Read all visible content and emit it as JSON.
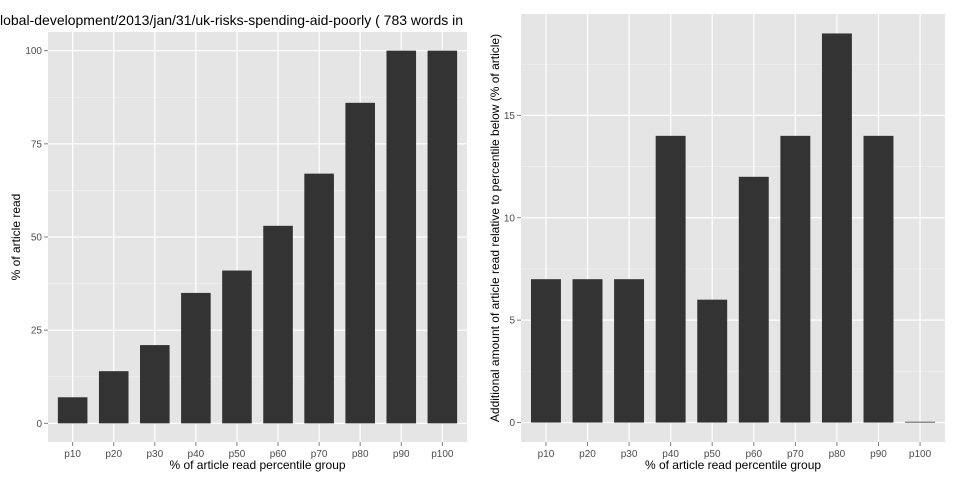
{
  "chart_data": [
    {
      "type": "bar",
      "title": "lobal-development/2013/jan/31/uk-risks-spending-aid-poorly ( 783 words in",
      "xlabel": "% of article read percentile group",
      "ylabel": "% of article read",
      "categories": [
        "p10",
        "p20",
        "p30",
        "p40",
        "p50",
        "p60",
        "p70",
        "p80",
        "p90",
        "p100"
      ],
      "values": [
        7,
        14,
        21,
        35,
        41,
        53,
        67,
        86,
        100,
        100
      ],
      "yticks": [
        0,
        25,
        50,
        75,
        100
      ],
      "ylim": [
        -5,
        105
      ],
      "grid": true,
      "bar_color": "#333333",
      "panel_color": "#e5e5e5"
    },
    {
      "type": "bar",
      "title": "",
      "xlabel": "% of article read percentile group",
      "ylabel": "Additional amount of article read relative to percentile below (% of article)",
      "categories": [
        "p10",
        "p20",
        "p30",
        "p40",
        "p50",
        "p60",
        "p70",
        "p80",
        "p90",
        "p100"
      ],
      "values": [
        7,
        7,
        7,
        14,
        6,
        12,
        14,
        19,
        14,
        0
      ],
      "yticks": [
        0,
        5,
        10,
        15
      ],
      "ylim": [
        -0.95,
        19.95
      ],
      "grid": true,
      "bar_color": "#333333",
      "panel_color": "#e5e5e5"
    }
  ]
}
